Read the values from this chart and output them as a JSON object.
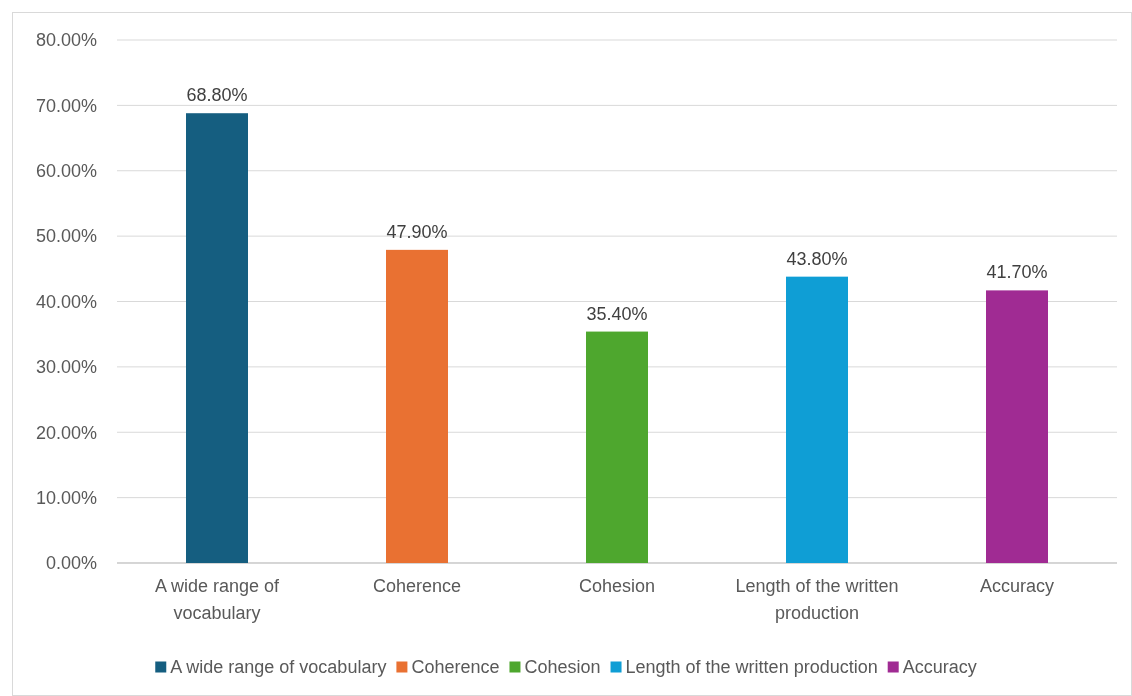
{
  "chart_data": {
    "type": "bar",
    "categories": [
      "A wide range of vocabulary",
      "Coherence",
      "Cohesion",
      "Length of the written production",
      "Accuracy"
    ],
    "series": [
      {
        "name": "A wide range of vocabulary",
        "color": "#155e80",
        "values": [
          68.8,
          null,
          null,
          null,
          null
        ],
        "value_labels": [
          "68.80%",
          null,
          null,
          null,
          null
        ]
      },
      {
        "name": "Coherence",
        "color": "#e97132",
        "values": [
          null,
          47.9,
          null,
          null,
          null
        ],
        "value_labels": [
          null,
          "47.90%",
          null,
          null,
          null
        ]
      },
      {
        "name": "Cohesion",
        "color": "#4ea72e",
        "values": [
          null,
          null,
          35.4,
          null,
          null
        ],
        "value_labels": [
          null,
          null,
          "35.40%",
          null,
          null
        ]
      },
      {
        "name": "Length of the written production",
        "color": "#0f9ed5",
        "values": [
          null,
          null,
          null,
          43.8,
          null
        ],
        "value_labels": [
          null,
          null,
          null,
          "43.80%",
          null
        ]
      },
      {
        "name": "Accuracy",
        "color": "#a02b93",
        "values": [
          null,
          null,
          null,
          null,
          41.7
        ],
        "value_labels": [
          null,
          null,
          null,
          null,
          "41.70%"
        ]
      }
    ],
    "ylim": [
      0,
      80
    ],
    "yticks": [
      {
        "value": 0,
        "label": "0.00%"
      },
      {
        "value": 10,
        "label": "10.00%"
      },
      {
        "value": 20,
        "label": "20.00%"
      },
      {
        "value": 30,
        "label": "30.00%"
      },
      {
        "value": 40,
        "label": "40.00%"
      },
      {
        "value": 50,
        "label": "50.00%"
      },
      {
        "value": 60,
        "label": "60.00%"
      },
      {
        "value": 70,
        "label": "70.00%"
      },
      {
        "value": 80,
        "label": "80.00%"
      }
    ],
    "grid": "y",
    "legend": "bottom"
  }
}
